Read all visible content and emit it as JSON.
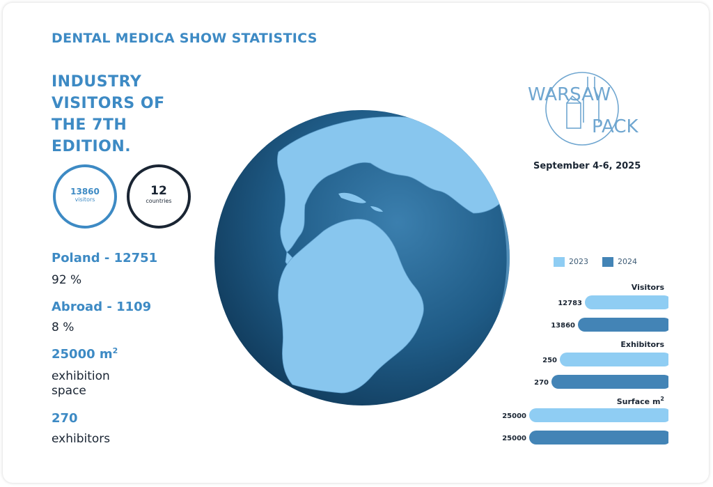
{
  "header": {
    "show_title": "DENTAL MEDICA SHOW STATISTICS",
    "industry_heading": "INDUSTRY VISITORS OF THE 7TH EDITION."
  },
  "circles": {
    "visitors_value": "13860",
    "visitors_label": "visitors",
    "countries_value": "12",
    "countries_label": "countries"
  },
  "stats": {
    "poland_head": "Poland - 12751",
    "poland_sub": "92 %",
    "abroad_head": "Abroad - 1109",
    "abroad_sub": "8 %",
    "space_head": "25000 m",
    "space_sup": "2",
    "space_sub_1": "exhibition",
    "space_sub_2": "space",
    "exhibitors_head": "270",
    "exhibitors_sub": "exhibitors"
  },
  "logo": {
    "line1": "WARSAW",
    "line2": "PACK",
    "date": "September 4-6, 2025"
  },
  "colors": {
    "accent": "#3d8ac4",
    "dark": "#1a2533",
    "series_2023": "#8fcdf3",
    "series_2024": "#4384b6",
    "globe_ocean": "#1f5b86",
    "globe_land": "#88c6ee"
  },
  "chart_data": {
    "type": "bar",
    "orientation": "horizontal",
    "legend": [
      "2023",
      "2024"
    ],
    "legend_position": "top",
    "groups": [
      {
        "label": "Visitors",
        "label_sup": "",
        "values": {
          "2023": 12783,
          "2024": 13860
        }
      },
      {
        "label": "Exhibitors",
        "label_sup": "",
        "values": {
          "2023": 250,
          "2024": 270
        }
      },
      {
        "label": "Surface m",
        "label_sup": "2",
        "values": {
          "2023": 25000,
          "2024": 25000
        }
      }
    ]
  }
}
